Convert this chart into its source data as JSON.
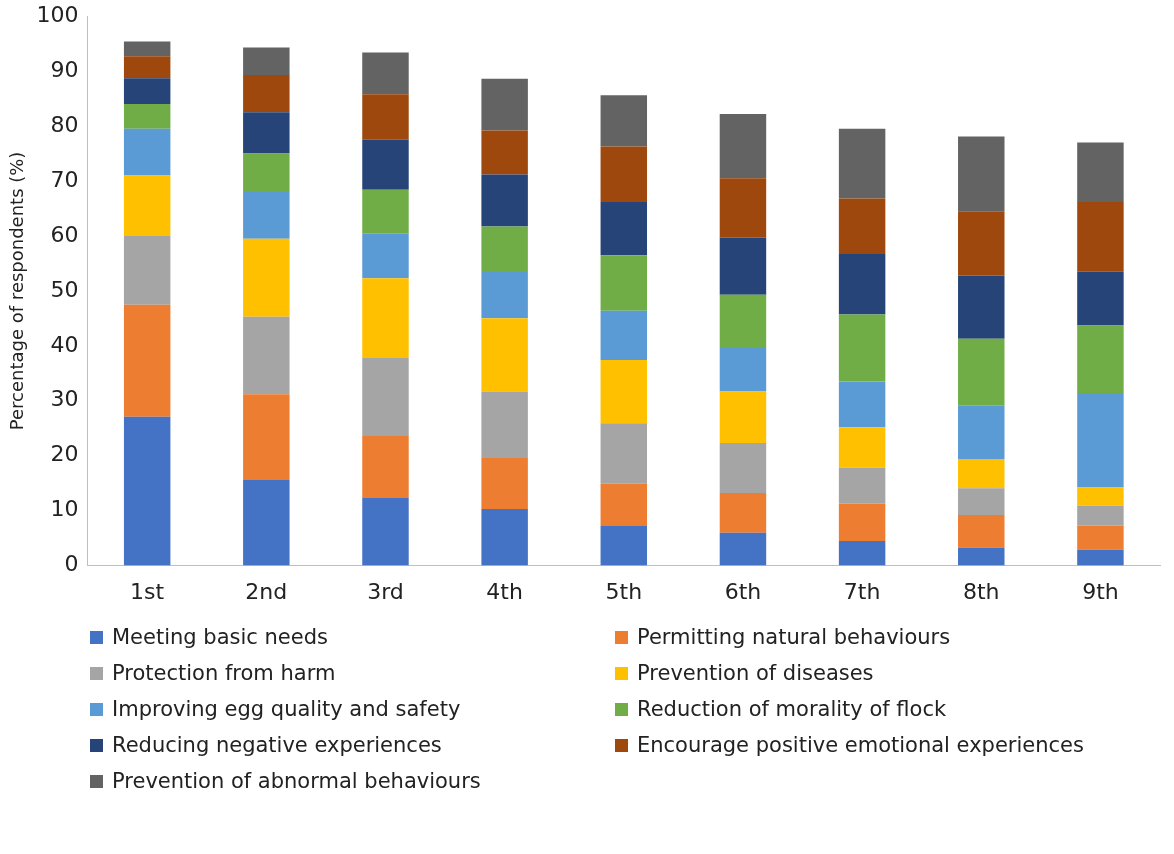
{
  "chart_data": {
    "type": "bar",
    "stacked": true,
    "ylabel": "Percentage of respondents (%)",
    "categories": [
      "1st",
      "2nd",
      "3rd",
      "4th",
      "5th",
      "6th",
      "7th",
      "8th",
      "9th"
    ],
    "ylim": [
      0,
      100
    ],
    "yticks": [
      0,
      10,
      20,
      30,
      40,
      50,
      60,
      70,
      80,
      90,
      100
    ],
    "grid": false,
    "legend": "bottom",
    "series": [
      {
        "name": "Meeting basic needs",
        "color": "#4472c4",
        "values": [
          27.1,
          15.6,
          12.3,
          10.3,
          7.2,
          6.0,
          4.5,
          3.3,
          2.9
        ]
      },
      {
        "name": "Permitting natural behaviours",
        "color": "#ed7d31",
        "values": [
          20.4,
          15.6,
          11.3,
          9.3,
          7.7,
          7.2,
          6.8,
          5.9,
          4.4
        ]
      },
      {
        "name": "Protection from harm",
        "color": "#a5a5a5",
        "values": [
          12.5,
          14.1,
          14.2,
          12.1,
          11.0,
          9.1,
          6.5,
          4.9,
          3.6
        ]
      },
      {
        "name": "Prevention of diseases",
        "color": "#ffc000",
        "values": [
          11.0,
          14.2,
          14.5,
          13.3,
          11.5,
          9.4,
          7.4,
          5.3,
          3.3
        ]
      },
      {
        "name": "Improving egg quality and safety",
        "color": "#5b9bd5",
        "values": [
          8.5,
          8.7,
          8.2,
          8.6,
          9.0,
          7.9,
          8.3,
          9.7,
          17.2
        ]
      },
      {
        "name": "Reduction of morality of flock",
        "color": "#70ad47",
        "values": [
          4.5,
          6.8,
          7.9,
          8.1,
          10.1,
          9.7,
          12.2,
          12.2,
          12.3
        ]
      },
      {
        "name": "Reducing negative experiences",
        "color": "#264478",
        "values": [
          4.7,
          7.5,
          9.1,
          9.5,
          9.7,
          10.4,
          11.0,
          11.5,
          9.8
        ]
      },
      {
        "name": "Encourage positive emotional experiences",
        "color": "#9e480e",
        "values": [
          4.0,
          6.8,
          8.3,
          8.0,
          10.1,
          10.8,
          10.1,
          11.7,
          12.7
        ]
      },
      {
        "name": "Prevention of abnormal behaviours",
        "color": "#636363",
        "values": [
          2.7,
          5.0,
          7.6,
          9.4,
          9.3,
          11.7,
          12.7,
          13.6,
          10.8
        ]
      }
    ]
  }
}
